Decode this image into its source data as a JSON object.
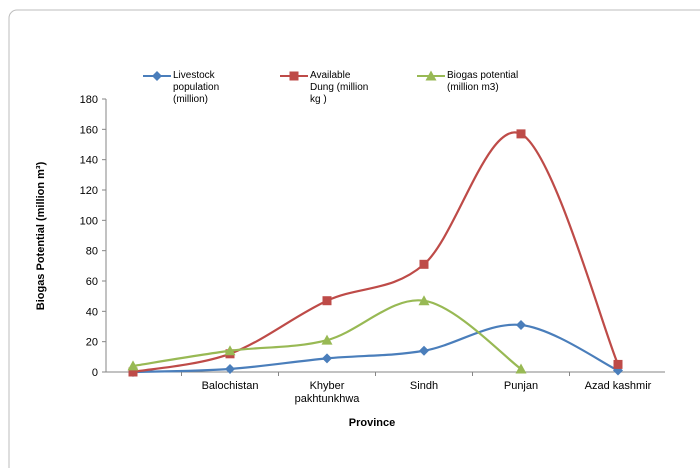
{
  "chart_data": {
    "type": "line",
    "categories": [
      null,
      "Balochistan",
      "Khyber pakhtunkhwa",
      "Sindh",
      "Punjan",
      "Azad kashmir"
    ],
    "series": [
      {
        "name": "Livestock population (million)",
        "color": "#4a7ebb",
        "marker": "diamond",
        "values": [
          0,
          2,
          9,
          14,
          31,
          1
        ]
      },
      {
        "name": "Available Dung (million kg )",
        "color": "#be4b48",
        "marker": "square",
        "values": [
          0,
          12,
          47,
          71,
          157,
          5
        ]
      },
      {
        "name": "Biogas potential (million m3)",
        "color": "#98b954",
        "marker": "triangle",
        "values": [
          4,
          14,
          21,
          47,
          2,
          null
        ]
      }
    ],
    "ylim": [
      0,
      180
    ],
    "yticks": [
      0,
      20,
      40,
      60,
      80,
      100,
      120,
      140,
      160,
      180
    ],
    "x_label": "Province",
    "y_label": "Biogas Potential (million m³)",
    "smooth": true,
    "grid": false,
    "legend": "top"
  }
}
